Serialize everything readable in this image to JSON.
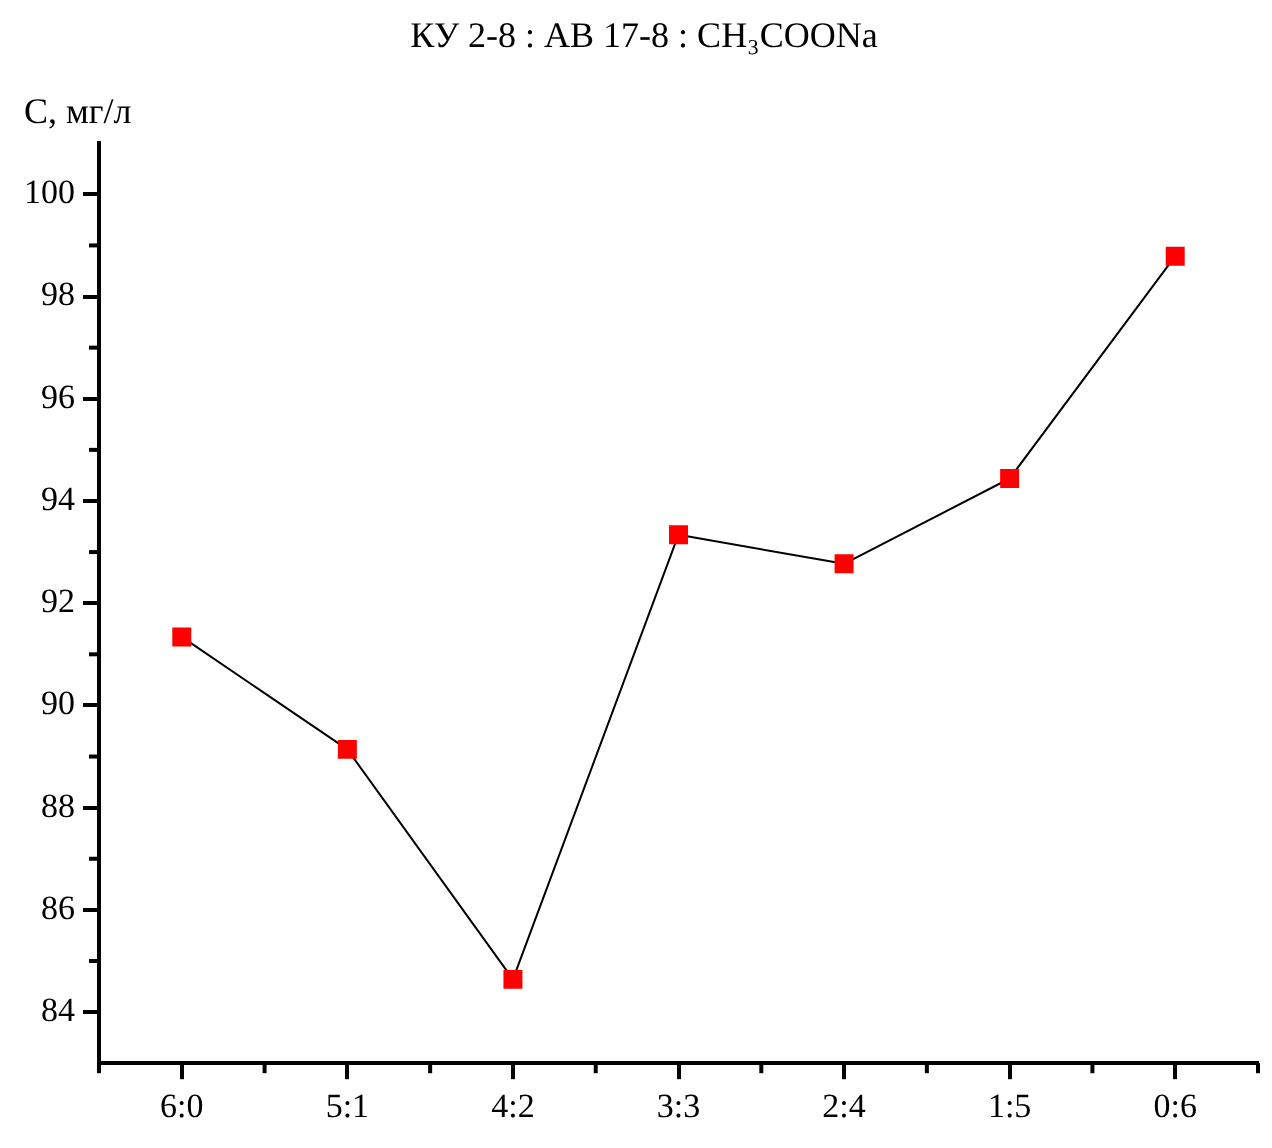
{
  "chart_data": {
    "type": "line",
    "title": "КУ 2-8 : АВ 17-8 : CH₃COONa",
    "ylabel": "C, мг/л",
    "categories": [
      "6:0",
      "5:1",
      "4:2",
      "3:3",
      "2:4",
      "1:5",
      "0:6"
    ],
    "series": [
      {
        "color": "#ff0000",
        "values": [
          91.34,
          89.14,
          84.64,
          93.34,
          92.77,
          94.44,
          98.79
        ]
      }
    ],
    "ylim": [
      83,
      101
    ],
    "yticks": [
      84,
      86,
      88,
      90,
      92,
      94,
      96,
      98,
      100
    ],
    "grid": false,
    "legend": false,
    "marker": "square",
    "line_style": "solid"
  }
}
